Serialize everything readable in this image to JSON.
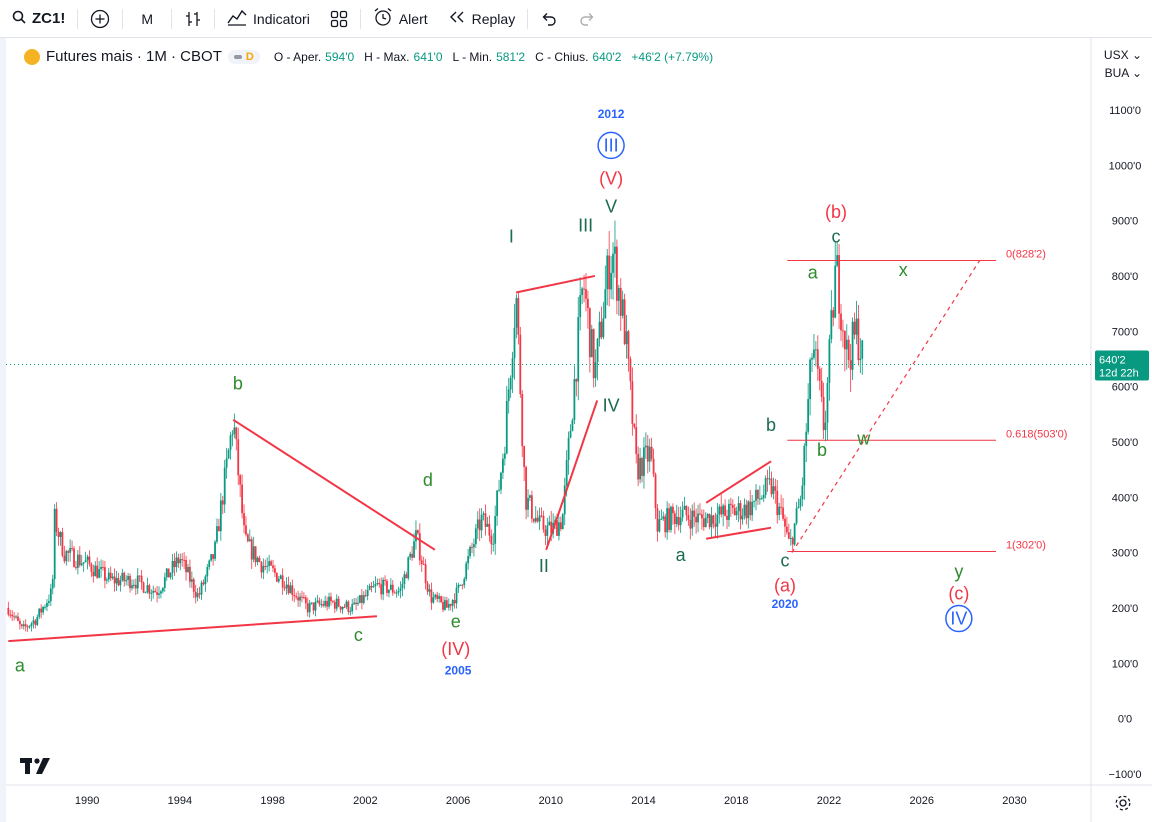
{
  "toolbar": {
    "symbol": "ZC1!",
    "interval": "M",
    "indicators_label": "Indicatori",
    "alert_label": "Alert",
    "replay_label": "Replay"
  },
  "legend": {
    "title": "Futures mais · 1M · CBOT",
    "badge": "D",
    "open_label": "O - Aper.",
    "open": "594'0",
    "high_label": "H - Max.",
    "high": "641'0",
    "low_label": "L - Min.",
    "low": "581'2",
    "close_label": "C - Chius.",
    "close": "640'2",
    "change": "+46'2 (+7.79%)"
  },
  "price_header": {
    "currency": "USX",
    "unit": "BUA"
  },
  "colors": {
    "up": "#089981",
    "down": "#f23645",
    "wave_red": "#f23645",
    "wave_green": "#2e8b2e",
    "wave_teal": "#1a6b50",
    "wave_blue": "#2962ff",
    "fib": "#f23645"
  },
  "chart_data": {
    "type": "candlestick",
    "symbol": "ZC1!",
    "interval": "1M",
    "x_axis_years": [
      "1990",
      "1994",
      "1998",
      "2002",
      "2006",
      "2010",
      "2014",
      "2018",
      "2022",
      "2026",
      "2030"
    ],
    "xlim": [
      1986.5,
      2033.3
    ],
    "y_ticks": [
      "1100'0",
      "1000'0",
      "900'0",
      "800'0",
      "700'0",
      "600'0",
      "500'0",
      "400'0",
      "300'0",
      "200'0",
      "100'0",
      "0'0",
      "−100'0"
    ],
    "y_tick_values": [
      1100,
      1000,
      900,
      800,
      700,
      600,
      500,
      400,
      300,
      200,
      100,
      0,
      -100
    ],
    "ylim": [
      -120,
      1230
    ],
    "price_path": [
      [
        1986.6,
        200
      ],
      [
        1987.2,
        160
      ],
      [
        1987.8,
        180
      ],
      [
        1988.5,
        230
      ],
      [
        1988.6,
        360
      ],
      [
        1989.0,
        300
      ],
      [
        1990.0,
        280
      ],
      [
        1991.0,
        250
      ],
      [
        1992.0,
        250
      ],
      [
        1993.0,
        230
      ],
      [
        1994.0,
        290
      ],
      [
        1994.8,
        220
      ],
      [
        1995.5,
        300
      ],
      [
        1996.3,
        540
      ],
      [
        1996.8,
        320
      ],
      [
        1997.5,
        280
      ],
      [
        1998.5,
        250
      ],
      [
        1999.5,
        200
      ],
      [
        2000.5,
        210
      ],
      [
        2001.5,
        200
      ],
      [
        2002.5,
        240
      ],
      [
        2003.5,
        230
      ],
      [
        2004.2,
        330
      ],
      [
        2004.8,
        220
      ],
      [
        2005.5,
        200
      ],
      [
        2006.0,
        230
      ],
      [
        2007.0,
        360
      ],
      [
        2007.5,
        330
      ],
      [
        2008.0,
        500
      ],
      [
        2008.5,
        770
      ],
      [
        2008.9,
        400
      ],
      [
        2009.5,
        350
      ],
      [
        2010.0,
        340
      ],
      [
        2010.5,
        360
      ],
      [
        2011.0,
        600
      ],
      [
        2011.4,
        790
      ],
      [
        2011.9,
        620
      ],
      [
        2012.5,
        820
      ],
      [
        2012.7,
        840
      ],
      [
        2013.2,
        700
      ],
      [
        2013.7,
        450
      ],
      [
        2014.3,
        480
      ],
      [
        2014.6,
        350
      ],
      [
        2015.5,
        370
      ],
      [
        2016.5,
        360
      ],
      [
        2017.5,
        370
      ],
      [
        2018.5,
        380
      ],
      [
        2019.5,
        420
      ],
      [
        2020.0,
        360
      ],
      [
        2020.3,
        310
      ],
      [
        2020.8,
        400
      ],
      [
        2021.3,
        680
      ],
      [
        2021.8,
        520
      ],
      [
        2022.3,
        820
      ],
      [
        2022.8,
        650
      ],
      [
        2023.2,
        700
      ],
      [
        2023.5,
        640
      ]
    ],
    "last_price": "640'2",
    "last_price_value": 640,
    "countdown": "12d 22h",
    "fib_levels": [
      {
        "label": "0(828'2)",
        "value": 828
      },
      {
        "label": "0.618(503'0)",
        "value": 503
      },
      {
        "label": "1(302'0)",
        "value": 302
      }
    ],
    "trendlines": [
      {
        "from": [
          1986.6,
          140
        ],
        "to": [
          2002.5,
          185
        ]
      },
      {
        "from": [
          1996.3,
          540
        ],
        "to": [
          2005.0,
          305
        ]
      },
      {
        "from": [
          2008.5,
          770
        ],
        "to": [
          2011.9,
          800
        ]
      },
      {
        "from": [
          2009.8,
          305
        ],
        "to": [
          2012.0,
          575
        ]
      },
      {
        "from": [
          2016.7,
          390
        ],
        "to": [
          2019.5,
          465
        ]
      },
      {
        "from": [
          2016.7,
          325
        ],
        "to": [
          2019.5,
          345
        ]
      }
    ],
    "projection": {
      "from": [
        2020.4,
        300
      ],
      "to": [
        2028.5,
        828
      ]
    },
    "wave_labels": [
      {
        "text": "a",
        "x": 1987.1,
        "y": 85,
        "color": "green"
      },
      {
        "text": "b",
        "x": 1996.5,
        "y": 595,
        "color": "green"
      },
      {
        "text": "c",
        "x": 2001.7,
        "y": 140,
        "color": "green"
      },
      {
        "text": "d",
        "x": 2004.7,
        "y": 420,
        "color": "green"
      },
      {
        "text": "e",
        "x": 2005.9,
        "y": 165,
        "color": "green"
      },
      {
        "text": "(IV)",
        "x": 2005.9,
        "y": 115,
        "color": "red"
      },
      {
        "text": "2005",
        "x": 2006.0,
        "y": 80,
        "color": "blue",
        "small": true
      },
      {
        "text": "I",
        "x": 2008.3,
        "y": 860,
        "color": "teal"
      },
      {
        "text": "II",
        "x": 2009.7,
        "y": 265,
        "color": "teal"
      },
      {
        "text": "III",
        "x": 2011.5,
        "y": 880,
        "color": "teal"
      },
      {
        "text": "IV",
        "x": 2012.6,
        "y": 555,
        "color": "teal"
      },
      {
        "text": "V",
        "x": 2012.6,
        "y": 915,
        "color": "teal"
      },
      {
        "text": "(V)",
        "x": 2012.6,
        "y": 965,
        "color": "red"
      },
      {
        "text": "III",
        "x": 2012.6,
        "y": 1025,
        "color": "blue",
        "circled": true
      },
      {
        "text": "2012",
        "x": 2012.6,
        "y": 1085,
        "color": "blue",
        "small": true
      },
      {
        "text": "a",
        "x": 2015.6,
        "y": 285,
        "color": "teal"
      },
      {
        "text": "b",
        "x": 2019.5,
        "y": 520,
        "color": "teal"
      },
      {
        "text": "c",
        "x": 2020.1,
        "y": 275,
        "color": "teal"
      },
      {
        "text": "(a)",
        "x": 2020.1,
        "y": 230,
        "color": "red"
      },
      {
        "text": "2020",
        "x": 2020.1,
        "y": 200,
        "color": "blue",
        "small": true
      },
      {
        "text": "a",
        "x": 2021.3,
        "y": 795,
        "color": "green"
      },
      {
        "text": "b",
        "x": 2021.7,
        "y": 475,
        "color": "green"
      },
      {
        "text": "c",
        "x": 2022.3,
        "y": 860,
        "color": "teal"
      },
      {
        "text": "(b)",
        "x": 2022.3,
        "y": 905,
        "color": "red"
      },
      {
        "text": "w",
        "x": 2023.5,
        "y": 495,
        "color": "green"
      },
      {
        "text": "x",
        "x": 2025.2,
        "y": 800,
        "color": "green"
      },
      {
        "text": "y",
        "x": 2027.6,
        "y": 255,
        "color": "green"
      },
      {
        "text": "(c)",
        "x": 2027.6,
        "y": 215,
        "color": "red"
      },
      {
        "text": "IV",
        "x": 2027.6,
        "y": 170,
        "color": "blue",
        "circled": true
      }
    ]
  }
}
